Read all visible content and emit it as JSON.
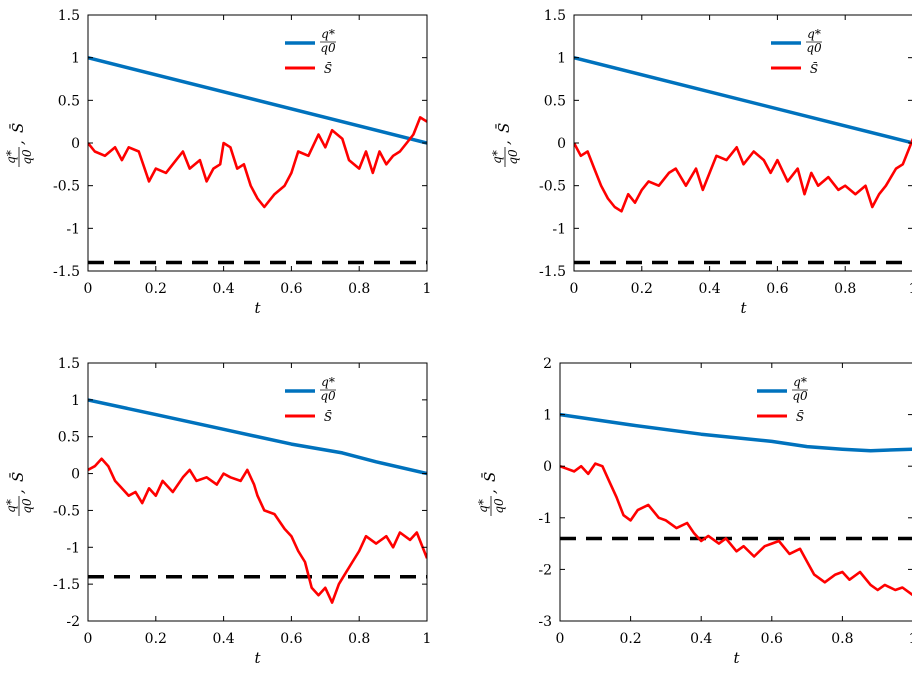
{
  "figure": {
    "colors": {
      "q_line": "#0072BD",
      "s_line": "#FF0000",
      "barrier": "#000000"
    },
    "panels": [
      {
        "xlabel": "t",
        "ylabel_q": "q*",
        "ylabel_q0": "q0",
        "ylabel_sep": ", ",
        "ylabel_s": "S̄",
        "legend": {
          "q_num": "q*",
          "q_den": "q0",
          "s": "S̄"
        }
      },
      {
        "xlabel": "t",
        "ylabel_q": "q*",
        "ylabel_q0": "q0",
        "ylabel_sep": ", ",
        "ylabel_s": "S̄",
        "legend": {
          "q_num": "q*",
          "q_den": "q0",
          "s": "S̄"
        }
      },
      {
        "xlabel": "t",
        "ylabel_q": "q*",
        "ylabel_q0": "q0",
        "ylabel_sep": ", ",
        "ylabel_s": "S̄",
        "legend": {
          "q_num": "q*",
          "q_den": "q0",
          "s": "S̄"
        }
      },
      {
        "xlabel": "t",
        "ylabel_q": "q*",
        "ylabel_q0": "q0",
        "ylabel_sep": ", ",
        "ylabel_s": "S̄",
        "legend": {
          "q_num": "q*",
          "q_den": "q0",
          "s": "S̄"
        }
      }
    ]
  },
  "chart_data": [
    {
      "type": "line",
      "xlim": [
        0,
        1
      ],
      "ylim": [
        -1.5,
        1.5
      ],
      "xticks": [
        0,
        0.2,
        0.4,
        0.6,
        0.8,
        1
      ],
      "xtick_labels": [
        "0",
        "0.2",
        "0.4",
        "0.6",
        "0.8",
        "1"
      ],
      "yticks": [
        -1.5,
        -1,
        -0.5,
        0,
        0.5,
        1,
        1.5
      ],
      "ytick_labels": [
        "-1.5",
        "-1",
        "-0.5",
        "0",
        "0.5",
        "1",
        "1.5"
      ],
      "barrier": -1.4,
      "series": [
        {
          "name": "q*/q0",
          "x": [
            0,
            1
          ],
          "y": [
            1,
            0
          ]
        },
        {
          "name": "S̄",
          "x": [
            0,
            0.02,
            0.05,
            0.08,
            0.1,
            0.12,
            0.15,
            0.18,
            0.2,
            0.23,
            0.26,
            0.28,
            0.3,
            0.33,
            0.35,
            0.37,
            0.39,
            0.4,
            0.42,
            0.44,
            0.46,
            0.48,
            0.5,
            0.52,
            0.55,
            0.58,
            0.6,
            0.62,
            0.65,
            0.68,
            0.7,
            0.72,
            0.75,
            0.77,
            0.8,
            0.82,
            0.84,
            0.86,
            0.88,
            0.9,
            0.92,
            0.94,
            0.96,
            0.98,
            1
          ],
          "y": [
            0,
            -0.1,
            -0.15,
            -0.05,
            -0.2,
            -0.05,
            -0.1,
            -0.45,
            -0.3,
            -0.35,
            -0.2,
            -0.1,
            -0.3,
            -0.2,
            -0.45,
            -0.3,
            -0.25,
            0,
            -0.05,
            -0.3,
            -0.25,
            -0.5,
            -0.65,
            -0.75,
            -0.6,
            -0.5,
            -0.35,
            -0.1,
            -0.15,
            0.1,
            -0.05,
            0.15,
            0.05,
            -0.2,
            -0.3,
            -0.1,
            -0.35,
            -0.1,
            -0.25,
            -0.15,
            -0.1,
            0,
            0.1,
            0.3,
            0.25
          ]
        }
      ]
    },
    {
      "type": "line",
      "xlim": [
        0,
        1
      ],
      "ylim": [
        -1.5,
        1.5
      ],
      "xticks": [
        0,
        0.2,
        0.4,
        0.6,
        0.8,
        1
      ],
      "xtick_labels": [
        "0",
        "0.2",
        "0.4",
        "0.6",
        "0.8",
        "1"
      ],
      "yticks": [
        -1.5,
        -1,
        -0.5,
        0,
        0.5,
        1,
        1.5
      ],
      "ytick_labels": [
        "-1.5",
        "-1",
        "-0.5",
        "0",
        "0.5",
        "1",
        "1.5"
      ],
      "barrier": -1.4,
      "series": [
        {
          "name": "q*/q0",
          "x": [
            0,
            1
          ],
          "y": [
            1,
            0
          ]
        },
        {
          "name": "S̄",
          "x": [
            0,
            0.02,
            0.04,
            0.06,
            0.08,
            0.1,
            0.12,
            0.14,
            0.16,
            0.18,
            0.2,
            0.22,
            0.25,
            0.28,
            0.3,
            0.33,
            0.36,
            0.38,
            0.4,
            0.42,
            0.45,
            0.48,
            0.5,
            0.53,
            0.56,
            0.58,
            0.6,
            0.63,
            0.66,
            0.68,
            0.7,
            0.72,
            0.75,
            0.78,
            0.8,
            0.83,
            0.86,
            0.88,
            0.9,
            0.92,
            0.95,
            0.97,
            1
          ],
          "y": [
            0,
            -0.15,
            -0.1,
            -0.3,
            -0.5,
            -0.65,
            -0.75,
            -0.8,
            -0.6,
            -0.7,
            -0.55,
            -0.45,
            -0.5,
            -0.35,
            -0.3,
            -0.5,
            -0.3,
            -0.55,
            -0.35,
            -0.15,
            -0.2,
            -0.05,
            -0.25,
            -0.1,
            -0.2,
            -0.35,
            -0.2,
            -0.45,
            -0.3,
            -0.6,
            -0.35,
            -0.5,
            -0.4,
            -0.55,
            -0.5,
            -0.6,
            -0.5,
            -0.75,
            -0.6,
            -0.5,
            -0.3,
            -0.25,
            0.05
          ]
        }
      ]
    },
    {
      "type": "line",
      "xlim": [
        0,
        1
      ],
      "ylim": [
        -2,
        1.5
      ],
      "xticks": [
        0,
        0.2,
        0.4,
        0.6,
        0.8,
        1
      ],
      "xtick_labels": [
        "0",
        "0.2",
        "0.4",
        "0.6",
        "0.8",
        "1"
      ],
      "yticks": [
        -2,
        -1.5,
        -1,
        -0.5,
        0,
        0.5,
        1,
        1.5
      ],
      "ytick_labels": [
        "-2",
        "-1.5",
        "-1",
        "-0.5",
        "0",
        "0.5",
        "1",
        "1.5"
      ],
      "barrier": -1.4,
      "series": [
        {
          "name": "q*/q0",
          "x": [
            0,
            0.2,
            0.4,
            0.6,
            0.75,
            0.85,
            1
          ],
          "y": [
            1,
            0.8,
            0.6,
            0.4,
            0.28,
            0.16,
            0
          ]
        },
        {
          "name": "S̄",
          "x": [
            0,
            0.02,
            0.04,
            0.06,
            0.08,
            0.1,
            0.12,
            0.14,
            0.16,
            0.18,
            0.2,
            0.22,
            0.25,
            0.28,
            0.3,
            0.32,
            0.35,
            0.38,
            0.4,
            0.42,
            0.45,
            0.47,
            0.49,
            0.5,
            0.52,
            0.55,
            0.58,
            0.6,
            0.62,
            0.64,
            0.66,
            0.68,
            0.7,
            0.72,
            0.74,
            0.76,
            0.78,
            0.8,
            0.82,
            0.85,
            0.88,
            0.9,
            0.92,
            0.95,
            0.97,
            1
          ],
          "y": [
            0.05,
            0.1,
            0.2,
            0.1,
            -0.1,
            -0.2,
            -0.3,
            -0.25,
            -0.4,
            -0.2,
            -0.3,
            -0.1,
            -0.25,
            -0.05,
            0.05,
            -0.1,
            -0.05,
            -0.15,
            0,
            -0.05,
            -0.1,
            0.05,
            -0.15,
            -0.3,
            -0.5,
            -0.55,
            -0.75,
            -0.85,
            -1.05,
            -1.2,
            -1.55,
            -1.65,
            -1.55,
            -1.75,
            -1.5,
            -1.35,
            -1.2,
            -1.05,
            -0.85,
            -0.95,
            -0.85,
            -1,
            -0.8,
            -0.9,
            -0.8,
            -1.15
          ]
        }
      ]
    },
    {
      "type": "line",
      "xlim": [
        0,
        1
      ],
      "ylim": [
        -3,
        2
      ],
      "xticks": [
        0,
        0.2,
        0.4,
        0.6,
        0.8,
        1
      ],
      "xtick_labels": [
        "0",
        "0.2",
        "0.4",
        "0.6",
        "0.8",
        "1"
      ],
      "yticks": [
        -3,
        -2,
        -1,
        0,
        1,
        2
      ],
      "ytick_labels": [
        "-3",
        "-2",
        "-1",
        "0",
        "1",
        "2"
      ],
      "barrier": -1.4,
      "series": [
        {
          "name": "q*/q0",
          "x": [
            0,
            0.2,
            0.4,
            0.6,
            0.7,
            0.8,
            0.88,
            1
          ],
          "y": [
            1,
            0.8,
            0.62,
            0.48,
            0.38,
            0.33,
            0.3,
            0.33
          ]
        },
        {
          "name": "S̄",
          "x": [
            0,
            0.02,
            0.04,
            0.06,
            0.08,
            0.1,
            0.12,
            0.14,
            0.16,
            0.18,
            0.2,
            0.22,
            0.25,
            0.28,
            0.3,
            0.33,
            0.36,
            0.38,
            0.4,
            0.42,
            0.45,
            0.47,
            0.5,
            0.52,
            0.55,
            0.58,
            0.6,
            0.62,
            0.65,
            0.68,
            0.7,
            0.72,
            0.75,
            0.78,
            0.8,
            0.82,
            0.85,
            0.88,
            0.9,
            0.92,
            0.95,
            0.97,
            1
          ],
          "y": [
            0,
            -0.05,
            -0.1,
            0,
            -0.15,
            0.05,
            0,
            -0.3,
            -0.6,
            -0.95,
            -1.05,
            -0.85,
            -0.75,
            -1,
            -1.05,
            -1.2,
            -1.1,
            -1.3,
            -1.45,
            -1.35,
            -1.5,
            -1.4,
            -1.65,
            -1.55,
            -1.75,
            -1.55,
            -1.5,
            -1.45,
            -1.7,
            -1.6,
            -1.85,
            -2.1,
            -2.25,
            -2.1,
            -2.05,
            -2.2,
            -2.05,
            -2.3,
            -2.4,
            -2.3,
            -2.4,
            -2.35,
            -2.5
          ]
        }
      ]
    }
  ]
}
